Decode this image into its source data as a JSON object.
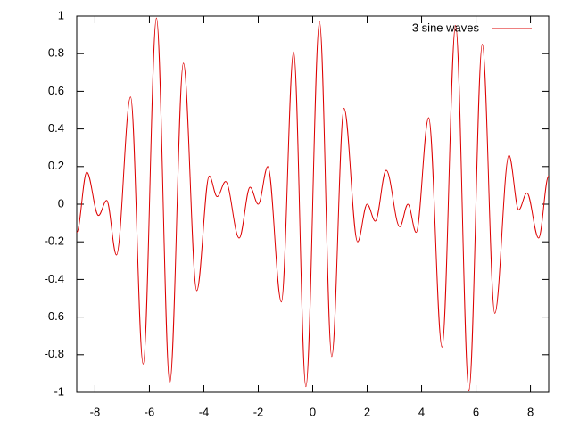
{
  "chart_data": {
    "type": "line",
    "xlim": [
      -8.67,
      8.67
    ],
    "ylim": [
      -1,
      1
    ],
    "xticks": [
      -8,
      -6,
      -4,
      -2,
      0,
      2,
      4,
      6,
      8
    ],
    "yticks": [
      -1,
      -0.8,
      -0.6,
      -0.4,
      -0.2,
      0,
      0.2,
      0.4,
      0.6,
      0.8,
      1
    ],
    "legend": "top-right",
    "series": [
      {
        "name": "3 sine waves",
        "color": "#dd0000",
        "x": [
          -8.67,
          -8.3,
          -7.87,
          -7.57,
          -7.21,
          -6.69,
          -6.23,
          -5.74,
          -5.25,
          -4.75,
          -4.26,
          -3.8,
          -3.51,
          -3.2,
          -2.7,
          -2.3,
          -2.0,
          -1.65,
          -1.15,
          -0.7,
          -0.25,
          0.25,
          0.7,
          1.15,
          1.65,
          2.0,
          2.3,
          2.7,
          3.2,
          3.5,
          3.8,
          4.26,
          4.75,
          5.25,
          5.74,
          6.23,
          6.69,
          7.21,
          7.57,
          7.87,
          8.3,
          8.67
        ],
        "values": [
          -0.15,
          0.17,
          -0.06,
          0.02,
          -0.27,
          0.57,
          -0.85,
          0.99,
          -0.95,
          0.75,
          -0.46,
          0.15,
          0.04,
          0.12,
          -0.18,
          0.09,
          0.0,
          0.2,
          -0.52,
          0.81,
          -0.97,
          0.97,
          -0.81,
          0.51,
          -0.2,
          0.0,
          -0.09,
          0.18,
          -0.12,
          0.0,
          -0.15,
          0.46,
          -0.76,
          0.95,
          -0.99,
          0.85,
          -0.58,
          0.26,
          -0.03,
          0.06,
          -0.18,
          0.15
        ]
      }
    ]
  }
}
